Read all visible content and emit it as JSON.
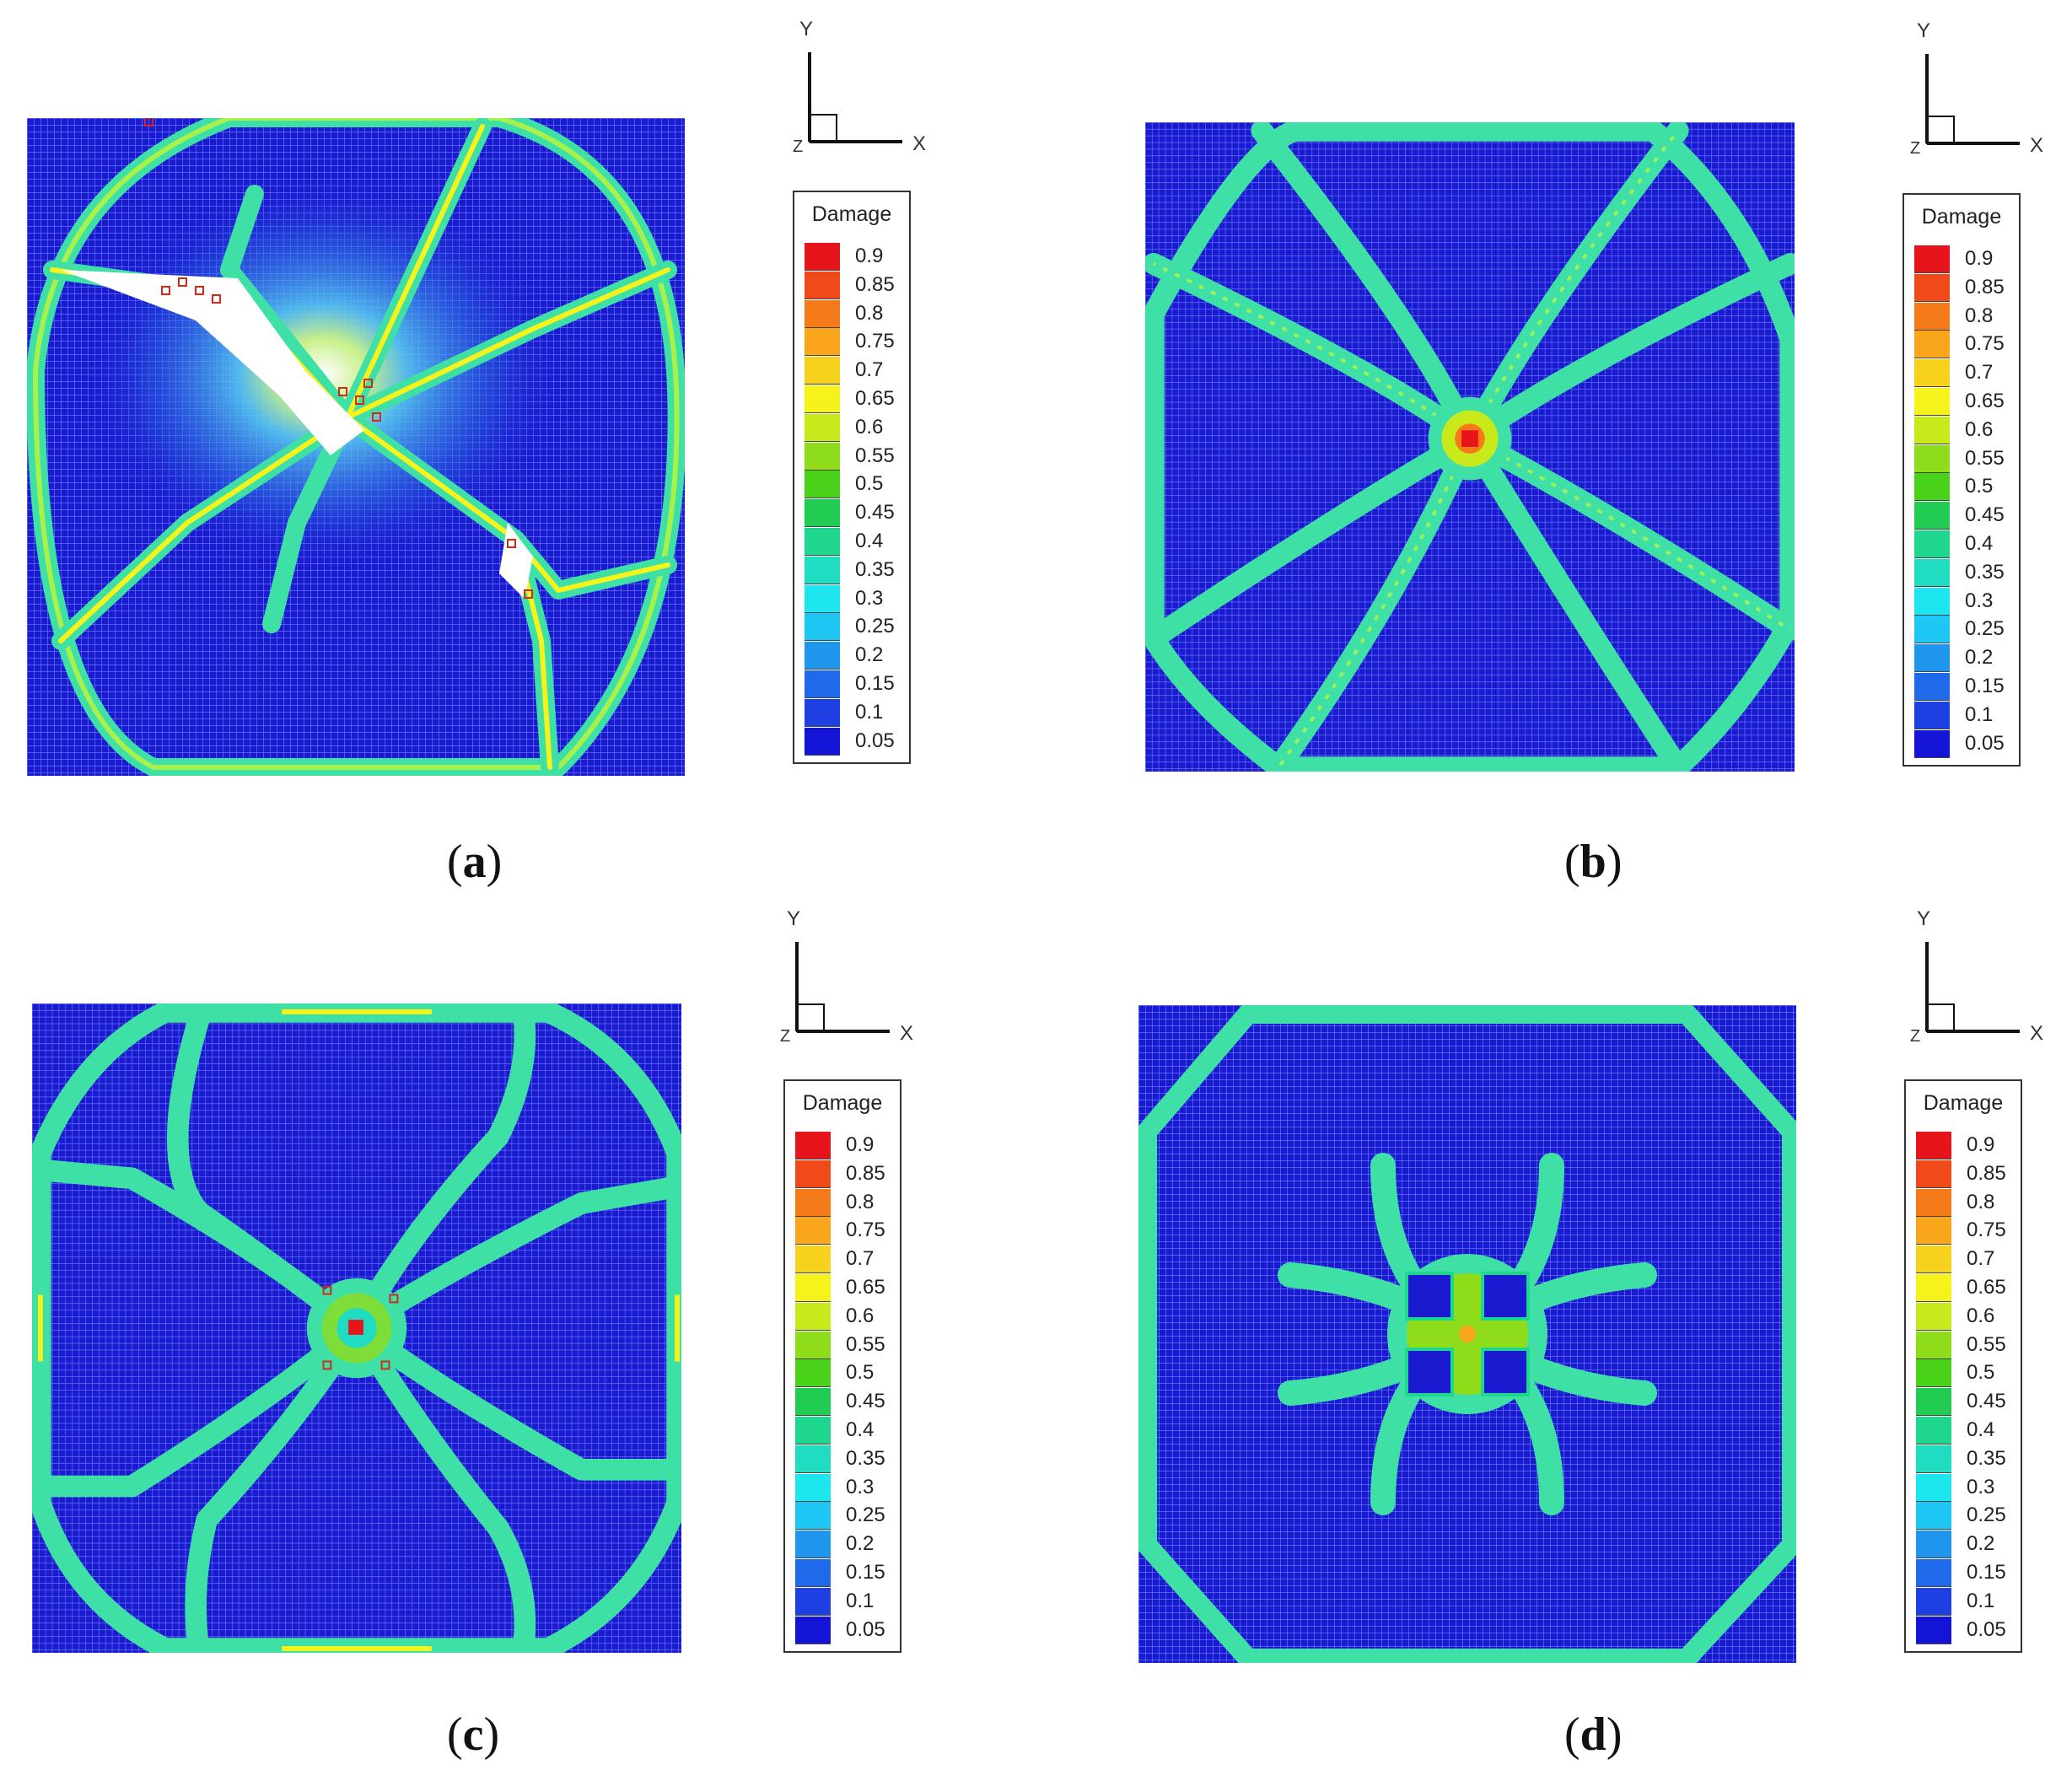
{
  "axis_labels": {
    "y": "Y",
    "x": "X",
    "z": "Z"
  },
  "legend": {
    "title": "Damage",
    "levels": [
      "0.9",
      "0.85",
      "0.8",
      "0.75",
      "0.7",
      "0.65",
      "0.6",
      "0.55",
      "0.5",
      "0.45",
      "0.4",
      "0.35",
      "0.3",
      "0.25",
      "0.2",
      "0.15",
      "0.1",
      "0.05"
    ],
    "colors": [
      "#e8141b",
      "#f04a1a",
      "#f57a1a",
      "#f9a61c",
      "#f7d21c",
      "#f5f21c",
      "#c8ea1a",
      "#8edc1a",
      "#4ad21a",
      "#22cc52",
      "#1ed68e",
      "#20ddc2",
      "#1ee6ee",
      "#1ec6f4",
      "#1e96ee",
      "#1e6aea",
      "#1e40e2",
      "#1414d6"
    ]
  },
  "panels": [
    {
      "id": "a",
      "caption_open": "(",
      "caption_letter": "a",
      "caption_close": ")"
    },
    {
      "id": "b",
      "caption_open": "(",
      "caption_letter": "b",
      "caption_close": ")"
    },
    {
      "id": "c",
      "caption_open": "(",
      "caption_letter": "c",
      "caption_close": ")"
    },
    {
      "id": "d",
      "caption_open": "(",
      "caption_letter": "d",
      "caption_close": ")"
    }
  ],
  "palette": {
    "background_damage": "#1a1ad0",
    "mesh_line": "#6a78ff",
    "crack": "#3fe0a6",
    "crack_core": "#9ef05a"
  }
}
